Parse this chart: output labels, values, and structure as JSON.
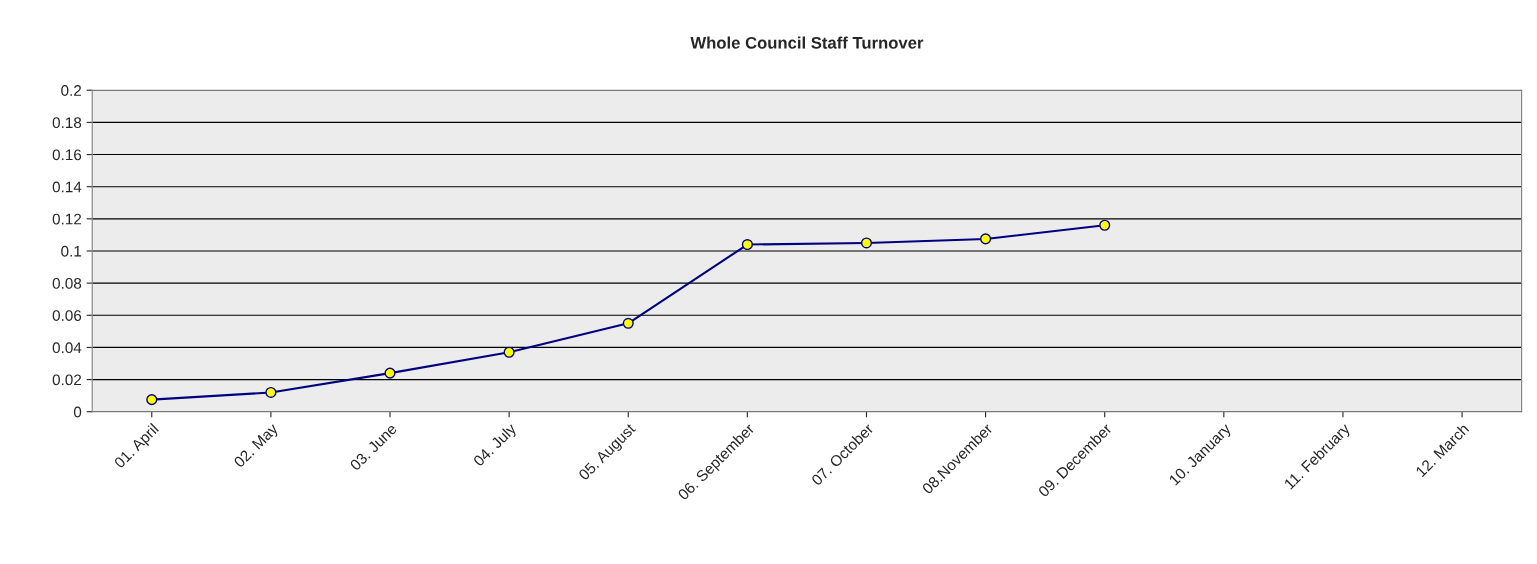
{
  "chart_data": {
    "type": "line",
    "title": "Whole Council Staff Turnover",
    "categories": [
      "01. April",
      "02. May",
      "03. June",
      "04. July",
      "05. August",
      "06. September",
      "07. October",
      "08.November",
      "09. December",
      "10. January",
      "11. February",
      "12. March"
    ],
    "series": [
      {
        "color": "#000080",
        "values": [
          0.0075,
          0.012,
          0.024,
          0.037,
          0.055,
          0.104,
          0.105,
          0.1075,
          0.116,
          null,
          null,
          null
        ]
      }
    ],
    "ylim": [
      0,
      0.2
    ],
    "yticks": [
      0,
      0.02,
      0.04,
      0.06,
      0.08,
      0.1,
      0.12,
      0.14,
      0.16,
      0.18,
      0.2
    ],
    "grid": "y",
    "marker": "circle",
    "line_style": "solid"
  }
}
